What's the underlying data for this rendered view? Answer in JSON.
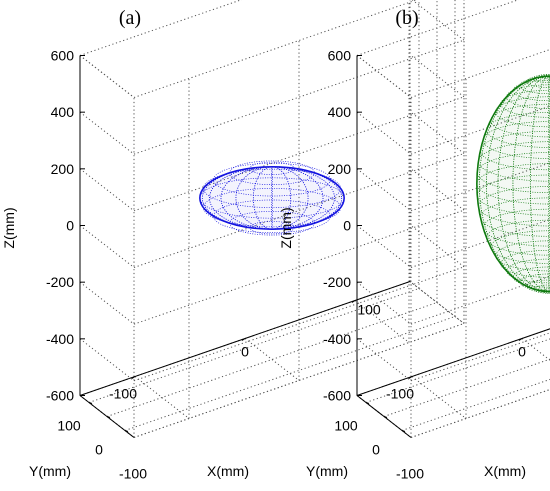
{
  "chart_data": [
    {
      "type": "scatter",
      "title": "(a)",
      "xlabel": "X(mm)",
      "ylabel": "Y(mm)",
      "zlabel": "Z(mm)",
      "xlim": [
        -150,
        150
      ],
      "ylim": [
        -150,
        150
      ],
      "zlim": [
        -600,
        600
      ],
      "x_ticks": [
        100,
        0,
        -100
      ],
      "y_ticks": [
        100,
        0,
        -100
      ],
      "z_ticks": [
        600,
        400,
        200,
        0,
        -200,
        -400,
        -600
      ],
      "grid": true,
      "series": [
        {
          "shape": "sphere",
          "center": [
            0,
            0,
            -30
          ],
          "radii": [
            100,
            100,
            110
          ],
          "color": "#1515e0"
        }
      ]
    },
    {
      "type": "scatter",
      "title": "(b)",
      "xlabel": "X(mm)",
      "ylabel": "Y(mm)",
      "zlabel": "Z(mm)",
      "xlim": [
        -150,
        150
      ],
      "ylim": [
        -150,
        150
      ],
      "zlim": [
        -600,
        600
      ],
      "x_ticks": [
        100,
        0,
        -100
      ],
      "y_ticks": [
        100,
        0,
        -100
      ],
      "z_ticks": [
        600,
        400,
        200,
        0,
        -200,
        -400,
        -600
      ],
      "grid": true,
      "series": [
        {
          "shape": "ellipsoid",
          "center": [
            0,
            0,
            20
          ],
          "radii": [
            100,
            100,
            380
          ],
          "color": "#0f7a0f"
        }
      ]
    }
  ]
}
